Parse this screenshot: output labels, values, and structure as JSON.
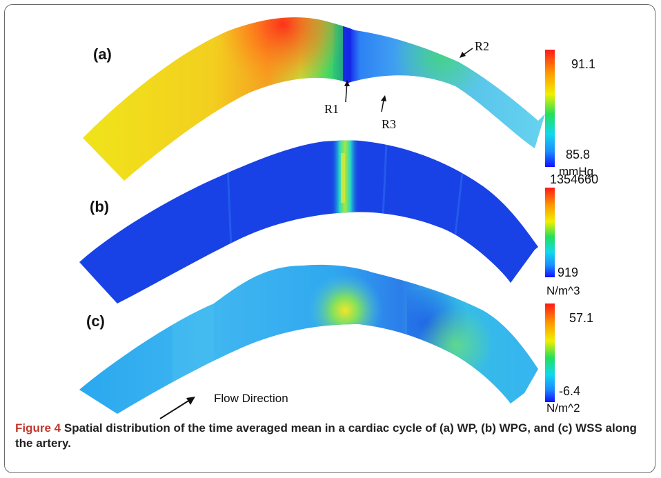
{
  "figure": {
    "panels": [
      {
        "label": "(a)",
        "scale_max": "91.1",
        "scale_min": "85.8",
        "unit": "mmHg"
      },
      {
        "label": "(b)",
        "scale_max": "1354660",
        "scale_min": "919",
        "unit": "N/m^3"
      },
      {
        "label": "(c)",
        "scale_max": "57.1",
        "scale_min": "-6.4",
        "unit": "N/m^2"
      }
    ],
    "annotations": {
      "r1": "R1",
      "r2": "R2",
      "r3": "R3"
    },
    "flow_label": "Flow Direction"
  },
  "caption": {
    "lead": "Figure 4",
    "text": "Spatial distribution of the time averaged mean in a cardiac cycle of (a) WP, (b) WPG, and (c) WSS along the artery."
  }
}
